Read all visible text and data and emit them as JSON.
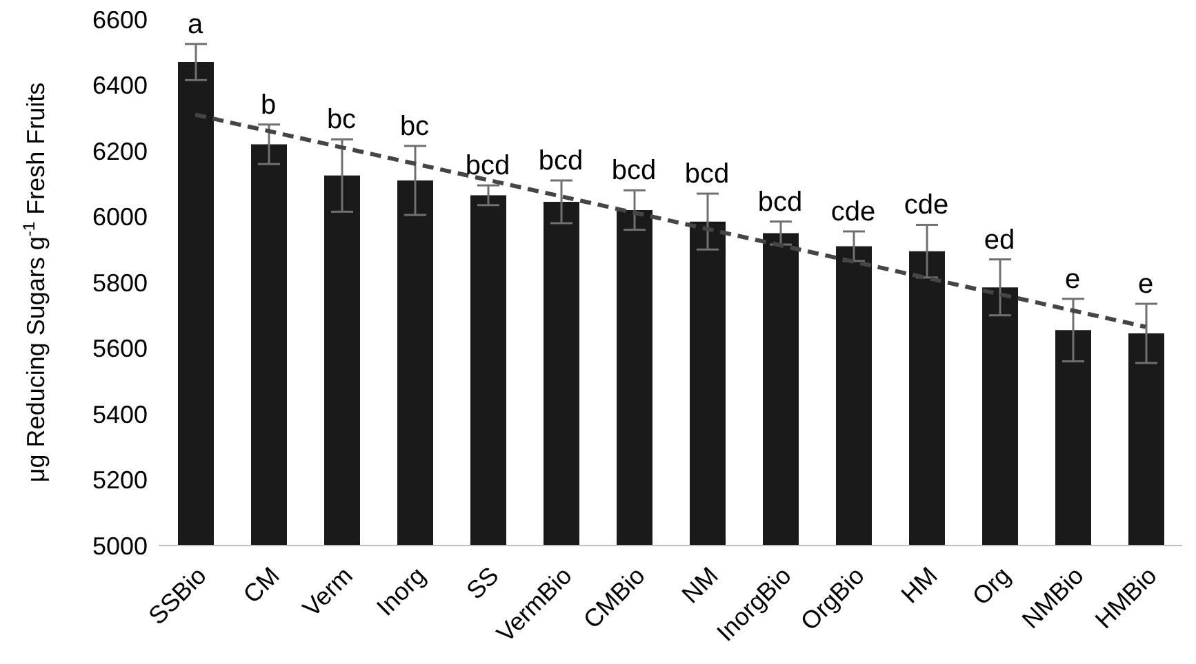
{
  "chart_data": {
    "type": "bar",
    "ylabel": "μg Reducing Sugars g$^{-1}$ Fresh Fruits",
    "categories": [
      "SSBio",
      "CM",
      "Verm",
      "Inorg",
      "SS",
      "VermBio",
      "CMBio",
      "NM",
      "InorgBio",
      "OrgBio",
      "HM",
      "Org",
      "NMBio",
      "HMBio"
    ],
    "series": [
      {
        "type": "bar",
        "color": "#1a1a1a",
        "values": [
          6470,
          6220,
          6125,
          6110,
          6065,
          6045,
          6020,
          5985,
          5950,
          5910,
          5895,
          5785,
          5655,
          5645
        ],
        "errors": [
          55,
          60,
          110,
          105,
          30,
          65,
          60,
          85,
          35,
          45,
          80,
          85,
          95,
          90
        ]
      },
      {
        "type": "line",
        "color": "#454545",
        "line_style": "dashed",
        "x": [
          "SSBio",
          "HMBio"
        ],
        "values": [
          6310,
          5665
        ]
      }
    ],
    "ylim": [
      5000,
      6600
    ],
    "yticks": [
      5000,
      5200,
      5400,
      5600,
      5800,
      6000,
      6200,
      6400,
      6600
    ],
    "grid": false,
    "legend": false,
    "annotations": [
      {
        "text": "a",
        "x": "SSBio",
        "y": 6525
      },
      {
        "text": "b",
        "x": "CM",
        "y": 6280
      },
      {
        "text": "bc",
        "x": "Verm",
        "y": 6235
      },
      {
        "text": "bc",
        "x": "Inorg",
        "y": 6215
      },
      {
        "text": "bcd",
        "x": "SS",
        "y": 6095
      },
      {
        "text": "bcd",
        "x": "VermBio",
        "y": 6110
      },
      {
        "text": "bcd",
        "x": "CMBio",
        "y": 6080
      },
      {
        "text": "bcd",
        "x": "NM",
        "y": 6070
      },
      {
        "text": "bcd",
        "x": "InorgBio",
        "y": 5985
      },
      {
        "text": "cde",
        "x": "OrgBio",
        "y": 5955
      },
      {
        "text": "cde",
        "x": "HM",
        "y": 5975
      },
      {
        "text": "ed",
        "x": "Org",
        "y": 5870
      },
      {
        "text": "e",
        "x": "NMBio",
        "y": 5750
      },
      {
        "text": "e",
        "x": "HMBio",
        "y": 5735
      }
    ]
  }
}
